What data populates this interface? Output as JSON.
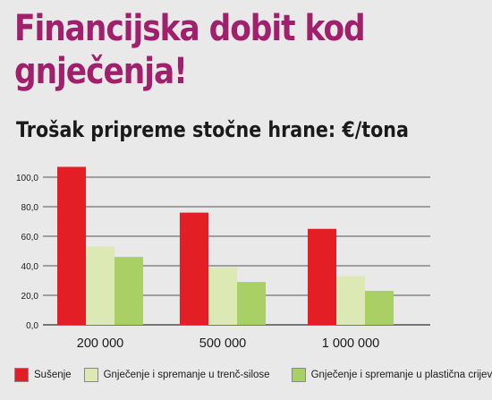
{
  "header": {
    "title_line1": "Financijska dobit kod",
    "title_line2": "gnječenja!"
  },
  "chart_data": {
    "type": "bar",
    "title": "Trošak pripreme stočne hrane: €/tona",
    "categories": [
      "200 000",
      "500 000",
      "1 000 000"
    ],
    "series": [
      {
        "name": "Sušenje",
        "color": "#e31e24",
        "values": [
          107,
          76,
          65
        ]
      },
      {
        "name": "Gnječenje i spremanje u trenč-silose",
        "color": "#dde9b5",
        "values": [
          53,
          39,
          33
        ]
      },
      {
        "name": "Gnječenje i spremanje u plastična crijeva",
        "color": "#a9d065",
        "values": [
          46,
          29,
          23
        ]
      }
    ],
    "ylim": [
      0,
      100
    ],
    "yticks": [
      "0,0",
      "20,0",
      "40,0",
      "60,0",
      "80,0",
      "100,0"
    ],
    "ytick_values": [
      0,
      20,
      40,
      60,
      80,
      100
    ],
    "grid": true,
    "legend_position": "bottom",
    "xlabel": "",
    "ylabel": ""
  }
}
